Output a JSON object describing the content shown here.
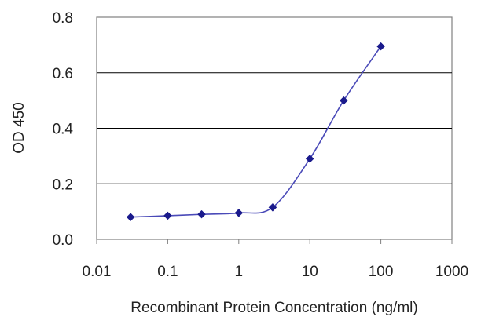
{
  "chart_data": {
    "type": "line",
    "title": "",
    "xlabel": "Recombinant Protein Concentration (ng/ml)",
    "ylabel": "OD 450",
    "x_scale": "log",
    "xlim": [
      0.01,
      1000
    ],
    "ylim": [
      0.0,
      0.8
    ],
    "x_ticks": [
      "0.01",
      "0.1",
      "1",
      "10",
      "100",
      "1000"
    ],
    "y_ticks": [
      "0.0",
      "0.2",
      "0.4",
      "0.6",
      "0.8"
    ],
    "grid": "horizontal",
    "legend": "none",
    "series": [
      {
        "x": [
          0.03,
          0.1,
          0.3,
          1,
          3,
          10,
          30,
          100
        ],
        "y": [
          0.08,
          0.085,
          0.09,
          0.095,
          0.115,
          0.29,
          0.5,
          0.695
        ],
        "color": "#1a1a8c"
      }
    ]
  }
}
